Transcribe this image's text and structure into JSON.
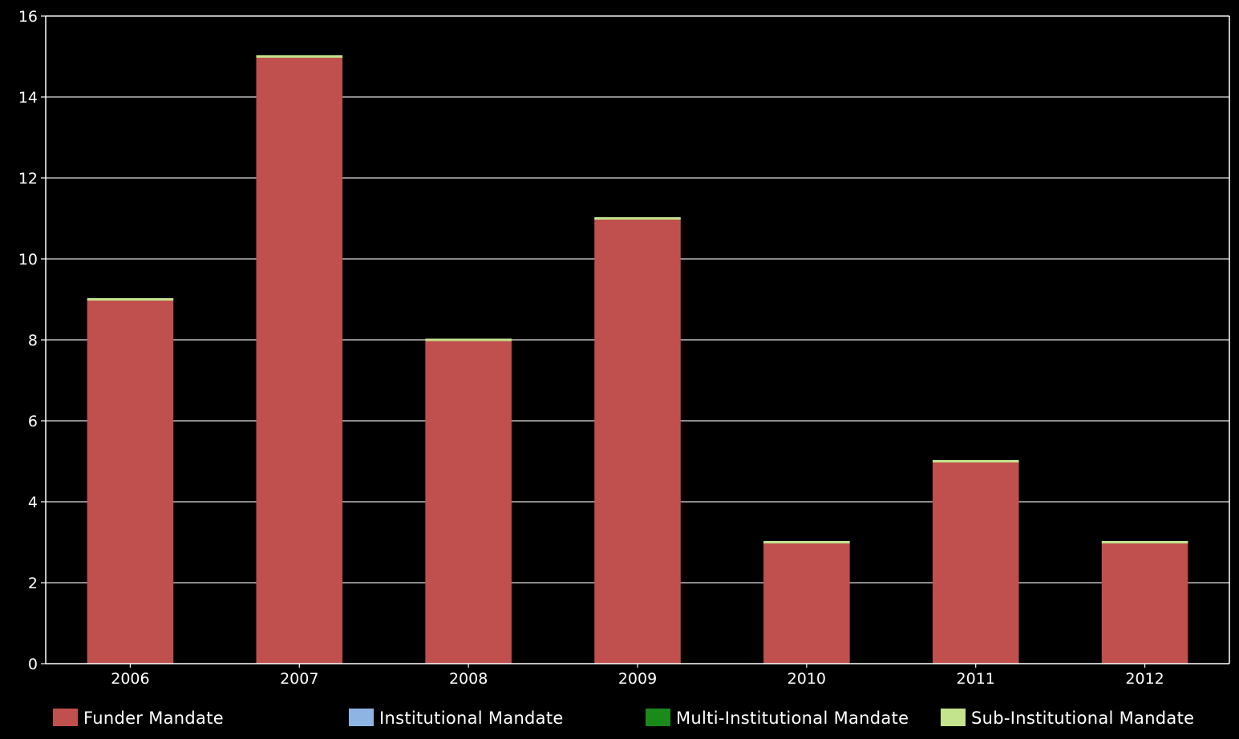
{
  "chart_data": {
    "type": "bar",
    "stacked": true,
    "categories": [
      "2006",
      "2007",
      "2008",
      "2009",
      "2010",
      "2011",
      "2012"
    ],
    "series": [
      {
        "name": "Funder Mandate",
        "color": "#c0504d",
        "values": [
          9,
          15,
          8,
          11,
          3,
          5,
          3
        ]
      },
      {
        "name": "Institutional Mandate",
        "color": "#8eb4e3",
        "values": [
          0,
          0,
          0,
          0,
          0,
          0,
          0
        ]
      },
      {
        "name": "Multi-Institutional Mandate",
        "color": "#1a8a1a",
        "values": [
          0,
          0,
          0,
          0,
          0,
          0,
          0
        ]
      },
      {
        "name": "Sub-Institutional Mandate",
        "color": "#c3e38c",
        "values": [
          0,
          0,
          0,
          0,
          0,
          0,
          0
        ]
      }
    ],
    "title": "",
    "xlabel": "",
    "ylabel": "",
    "ylim": [
      0,
      16
    ],
    "yticks": [
      0,
      2,
      4,
      6,
      8,
      10,
      12,
      14,
      16
    ],
    "grid": true,
    "legend_position": "bottom",
    "background_color": "#000000",
    "grid_color": "#e0e0e0"
  }
}
